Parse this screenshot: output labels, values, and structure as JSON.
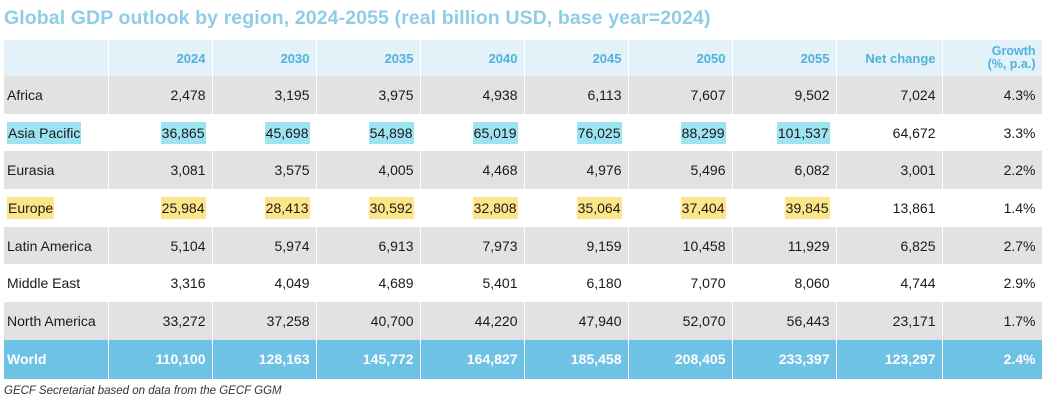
{
  "chart_data": {
    "type": "table",
    "title": "Global GDP outlook by region, 2024-2055 (real billion USD, base year=2024)",
    "columns": [
      "",
      "2024",
      "2030",
      "2035",
      "2040",
      "2045",
      "2050",
      "2055",
      "Net change",
      "Growth (%, p.a.)"
    ],
    "column_header_lines": {
      "growth_line1": "Growth",
      "growth_line2": "(%, p.a.)"
    },
    "rows": [
      {
        "region": "Africa",
        "values": [
          "2,478",
          "3,195",
          "3,975",
          "4,938",
          "6,113",
          "7,607",
          "9,502"
        ],
        "net_change": "7,024",
        "growth": "4.3%",
        "highlight": null
      },
      {
        "region": "Asia Pacific",
        "values": [
          "36,865",
          "45,698",
          "54,898",
          "65,019",
          "76,025",
          "88,299",
          "101,537"
        ],
        "net_change": "64,672",
        "growth": "3.3%",
        "highlight": "#9ee3f1"
      },
      {
        "region": "Eurasia",
        "values": [
          "3,081",
          "3,575",
          "4,005",
          "4,468",
          "4,976",
          "5,496",
          "6,082"
        ],
        "net_change": "3,001",
        "growth": "2.2%",
        "highlight": null
      },
      {
        "region": "Europe",
        "values": [
          "25,984",
          "28,413",
          "30,592",
          "32,808",
          "35,064",
          "37,404",
          "39,845"
        ],
        "net_change": "13,861",
        "growth": "1.4%",
        "highlight": "#fce68a"
      },
      {
        "region": "Latin America",
        "values": [
          "5,104",
          "5,974",
          "6,913",
          "7,973",
          "9,159",
          "10,458",
          "11,929"
        ],
        "net_change": "6,825",
        "growth": "2.7%",
        "highlight": null
      },
      {
        "region": "Middle East",
        "values": [
          "3,316",
          "4,049",
          "4,689",
          "5,401",
          "6,180",
          "7,070",
          "8,060"
        ],
        "net_change": "4,744",
        "growth": "2.9%",
        "highlight": null
      },
      {
        "region": "North America",
        "values": [
          "33,272",
          "37,258",
          "40,700",
          "44,220",
          "47,940",
          "52,070",
          "56,443"
        ],
        "net_change": "23,171",
        "growth": "1.7%",
        "highlight": null
      }
    ],
    "total": {
      "region": "World",
      "values": [
        "110,100",
        "128,163",
        "145,772",
        "164,827",
        "185,458",
        "208,405",
        "233,397"
      ],
      "net_change": "123,297",
      "growth": "2.4%"
    }
  },
  "source": "GECF Secretariat based on data from the GECF GGM",
  "colors": {
    "title": "#8fcde6",
    "header_bg": "#e3f1f8",
    "header_text": "#4db3dc",
    "row_gray": "#e2e2e2",
    "world_bg": "#6ec2e6",
    "highlight_blue": "#9ee3f1",
    "highlight_yellow": "#fce68a"
  }
}
